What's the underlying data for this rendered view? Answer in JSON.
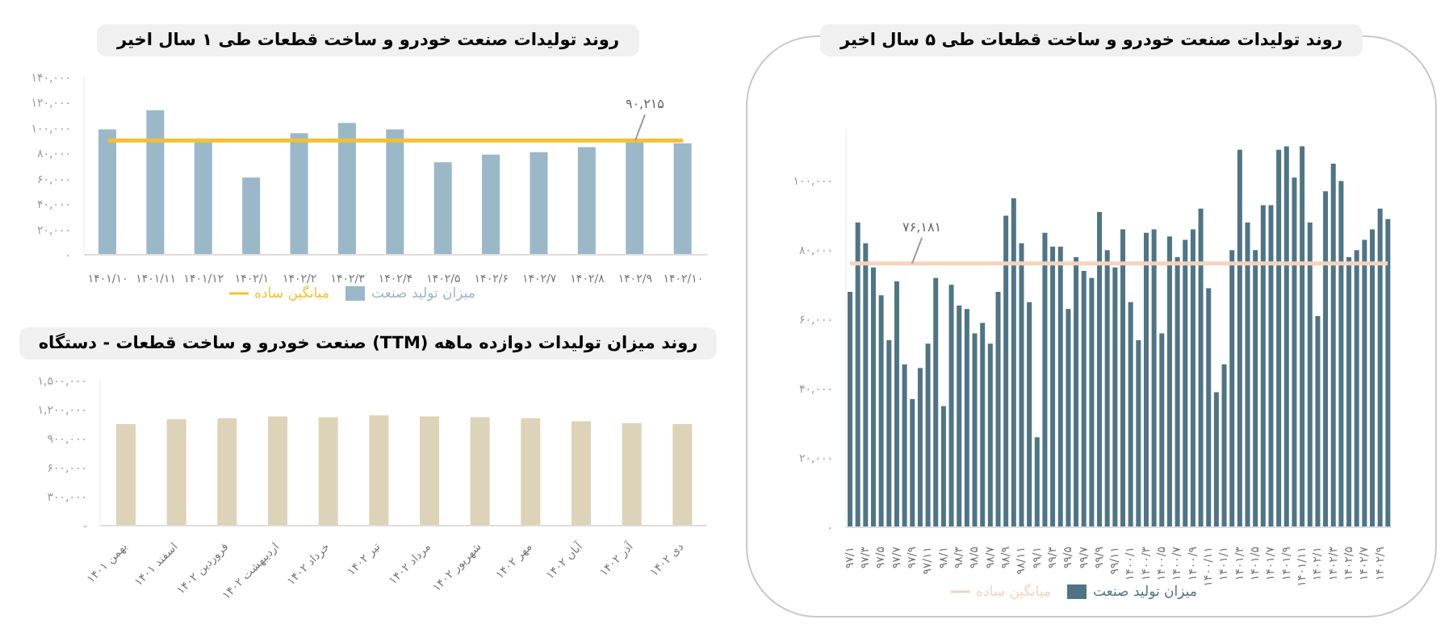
{
  "chart_data": [
    {
      "type": "bar",
      "title": "روند تولیدات صنعت خودرو و ساخت قطعات طی ۱ سال اخیر",
      "categories": [
        "۱۴۰۱/۱۰",
        "۱۴۰۱/۱۱",
        "۱۴۰۱/۱۲",
        "۱۴۰۲/۱",
        "۱۴۰۲/۲",
        "۱۴۰۲/۳",
        "۱۴۰۲/۴",
        "۱۴۰۲/۵",
        "۱۴۰۲/۶",
        "۱۴۰۲/۷",
        "۱۴۰۲/۸",
        "۱۴۰۲/۹",
        "۱۴۰۲/۱۰"
      ],
      "series": [
        {
          "name": "میزان تولید صنعت",
          "color": "#9ab8c8",
          "values": [
            99000,
            114000,
            89000,
            61000,
            96000,
            104000,
            99000,
            73000,
            79000,
            81000,
            85000,
            89000,
            88000
          ]
        },
        {
          "name": "میانگین ساده",
          "type": "line",
          "color": "#f2c12e",
          "values": [
            90215,
            90215,
            90215,
            90215,
            90215,
            90215,
            90215,
            90215,
            90215,
            90215,
            90215,
            90215,
            90215
          ]
        }
      ],
      "ylim": [
        0,
        140000
      ],
      "yticks": [
        {
          "value": 0,
          "label": "۰"
        },
        {
          "value": 20000,
          "label": "۲۰,۰۰۰"
        },
        {
          "value": 40000,
          "label": "۴۰,۰۰۰"
        },
        {
          "value": 60000,
          "label": "۶۰,۰۰۰"
        },
        {
          "value": 80000,
          "label": "۸۰,۰۰۰"
        },
        {
          "value": 100000,
          "label": "۱۰۰,۰۰۰"
        },
        {
          "value": 120000,
          "label": "۱۲۰,۰۰۰"
        },
        {
          "value": 140000,
          "label": "۱۴۰,۰۰۰"
        }
      ],
      "annotations": [
        {
          "text": "۹۰,۲۱۵",
          "x": "۱۴۰۲/۹",
          "y": 90215
        }
      ],
      "legend": "bottom",
      "marker": "none",
      "grid": false
    },
    {
      "type": "bar",
      "title": "روند میزان تولیدات دوازده ماهه (TTM) صنعت خودرو و ساخت قطعات - دستگاه",
      "categories": [
        "بهمن ۱۴۰۱",
        "اسفند ۱۴۰۱",
        "فروردین ۱۴۰۲",
        "اردیبهشت ۱۴۰۲",
        "خرداد ۱۴۰۲",
        "تیر ۱۴۰۲",
        "مرداد ۱۴۰۲",
        "شهریور ۱۴۰۲",
        "مهر ۱۴۰۲",
        "آبان ۱۴۰۲",
        "آذر ۱۴۰۲",
        "دی ۱۴۰۲"
      ],
      "series": [
        {
          "color": "#ddd3b8",
          "values": [
            1050000,
            1100000,
            1110000,
            1130000,
            1120000,
            1140000,
            1130000,
            1120000,
            1110000,
            1080000,
            1060000,
            1050000
          ]
        }
      ],
      "ylim": [
        0,
        1500000
      ],
      "yticks": [
        {
          "value": 0,
          "label": "-"
        },
        {
          "value": 300000,
          "label": "۳۰۰,۰۰۰"
        },
        {
          "value": 600000,
          "label": "۶۰۰,۰۰۰"
        },
        {
          "value": 900000,
          "label": "۹۰۰,۰۰۰"
        },
        {
          "value": 1200000,
          "label": "۱,۲۰۰,۰۰۰"
        },
        {
          "value": 1500000,
          "label": "۱,۵۰۰,۰۰۰"
        }
      ],
      "grid": false
    },
    {
      "type": "bar",
      "title": "روند تولیدات صنعت خودرو و ساخت قطعات طی ۵ سال اخیر",
      "categories": [
        "۹۷/۱",
        null,
        "۹۷/۳",
        null,
        "۹۷/۵",
        null,
        "۹۷/۷",
        null,
        "۹۷/۹",
        null,
        "۹۷/۱۱",
        null,
        "۹۸/۱",
        null,
        "۹۸/۳",
        null,
        "۹۸/۵",
        null,
        "۹۸/۷",
        null,
        "۹۸/۹",
        null,
        "۹۸/۱۱",
        null,
        "۹۹/۱",
        null,
        "۹۹/۳",
        null,
        "۹۹/۵",
        null,
        "۹۹/۷",
        null,
        "۹۹/۹",
        null,
        "۹۹/۱۱",
        null,
        "۱۴۰۰/۱",
        null,
        "۱۴۰۰/۳",
        null,
        "۱۴۰۰/۵",
        null,
        "۱۴۰۰/۷",
        null,
        "۱۴۰۰/۹",
        null,
        "۱۴۰۰/۱۱",
        null,
        "۱۴۰۱/۱",
        null,
        "۱۴۰۱/۳",
        null,
        "۱۴۰۱/۵",
        null,
        "۱۴۰۱/۷",
        null,
        "۱۴۰۱/۹",
        null,
        "۱۴۰۱/۱۱",
        null,
        "۱۴۰۲/۱",
        null,
        "۱۴۰۲/۳",
        null,
        "۱۴۰۲/۵",
        null,
        "۱۴۰۲/۷",
        null,
        "۱۴۰۲/۹",
        null
      ],
      "series": [
        {
          "name": "میزان تولید صنعت",
          "color": "#4f7585",
          "values": [
            68000,
            88000,
            82000,
            75000,
            67000,
            54000,
            71000,
            47000,
            37000,
            46000,
            53000,
            72000,
            35000,
            70000,
            64000,
            63000,
            56000,
            59000,
            53000,
            68000,
            90000,
            95000,
            82000,
            65000,
            26000,
            85000,
            81000,
            81000,
            63000,
            78000,
            74000,
            72000,
            91000,
            80000,
            75000,
            86000,
            65000,
            54000,
            85000,
            86000,
            56000,
            84000,
            78000,
            83000,
            86000,
            92000,
            69000,
            39000,
            47000,
            80000,
            109000,
            88000,
            80000,
            93000,
            93000,
            109000,
            110000,
            101000,
            110000,
            88000,
            61000,
            97000,
            105000,
            100000,
            78000,
            80000,
            83000,
            86000,
            92000,
            89000
          ]
        },
        {
          "name": "میانگین ساده",
          "type": "line",
          "color": "#f5d3bd",
          "values": [
            76181,
            76181,
            76181,
            76181,
            76181,
            76181,
            76181,
            76181,
            76181,
            76181,
            76181,
            76181,
            76181,
            76181,
            76181,
            76181,
            76181,
            76181,
            76181,
            76181,
            76181,
            76181,
            76181,
            76181,
            76181,
            76181,
            76181,
            76181,
            76181,
            76181,
            76181,
            76181,
            76181,
            76181,
            76181,
            76181,
            76181,
            76181,
            76181,
            76181,
            76181,
            76181,
            76181,
            76181,
            76181,
            76181,
            76181,
            76181,
            76181,
            76181,
            76181,
            76181,
            76181,
            76181,
            76181,
            76181,
            76181,
            76181,
            76181,
            76181,
            76181,
            76181,
            76181,
            76181,
            76181,
            76181,
            76181,
            76181,
            76181,
            76181
          ]
        }
      ],
      "ylim": [
        0,
        115000
      ],
      "yticks": [
        {
          "value": 0,
          "label": "۰"
        },
        {
          "value": 20000,
          "label": "۲۰,۰۰۰"
        },
        {
          "value": 40000,
          "label": "۴۰,۰۰۰"
        },
        {
          "value": 60000,
          "label": "۶۰,۰۰۰"
        },
        {
          "value": 80000,
          "label": "۸۰,۰۰۰"
        },
        {
          "value": 100000,
          "label": "۱۰۰,۰۰۰"
        }
      ],
      "annotations": [
        {
          "text": "۷۶,۱۸۱",
          "x": "۹۷/۹",
          "y": 76181
        }
      ],
      "legend": "bottom",
      "marker": "none",
      "grid": false
    }
  ]
}
